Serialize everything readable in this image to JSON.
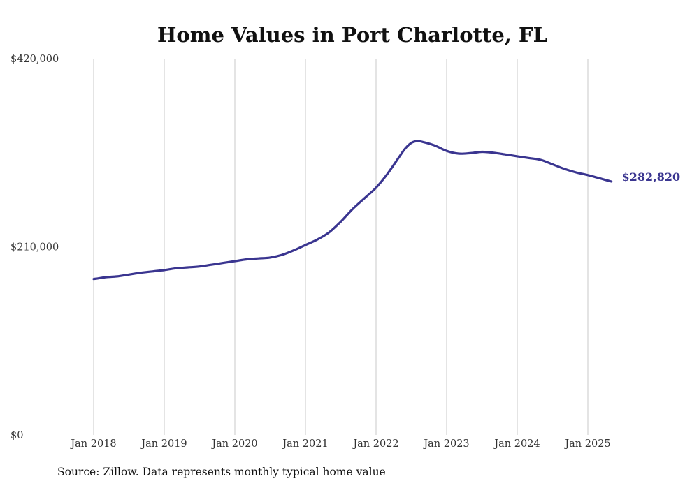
{
  "chart_data": {
    "type": "line",
    "title": "Home Values in Port Charlotte, FL",
    "xlabel": "",
    "ylabel": "",
    "ylim": [
      0,
      420000
    ],
    "xlim": [
      "2018-01",
      "2025-05"
    ],
    "grid": "vertical",
    "y_ticks": [
      {
        "value": 0,
        "label": "$0"
      },
      {
        "value": 210000,
        "label": "$210,000"
      },
      {
        "value": 420000,
        "label": "$420,000"
      }
    ],
    "x_ticks": [
      {
        "value": "2018-01",
        "label": "Jan 2018"
      },
      {
        "value": "2019-01",
        "label": "Jan 2019"
      },
      {
        "value": "2020-01",
        "label": "Jan 2020"
      },
      {
        "value": "2021-01",
        "label": "Jan 2021"
      },
      {
        "value": "2022-01",
        "label": "Jan 2022"
      },
      {
        "value": "2023-01",
        "label": "Jan 2023"
      },
      {
        "value": "2024-01",
        "label": "Jan 2024"
      },
      {
        "value": "2025-01",
        "label": "Jan 2025"
      }
    ],
    "series": [
      {
        "color": "#3a3590",
        "points": [
          [
            "2018-01",
            174000
          ],
          [
            "2018-02",
            175000
          ],
          [
            "2018-03",
            176000
          ],
          [
            "2018-05",
            177000
          ],
          [
            "2018-07",
            179000
          ],
          [
            "2018-09",
            181000
          ],
          [
            "2018-11",
            182500
          ],
          [
            "2019-01",
            184000
          ],
          [
            "2019-03",
            186000
          ],
          [
            "2019-05",
            187000
          ],
          [
            "2019-07",
            188000
          ],
          [
            "2019-09",
            190000
          ],
          [
            "2019-11",
            192000
          ],
          [
            "2020-01",
            194000
          ],
          [
            "2020-03",
            196000
          ],
          [
            "2020-05",
            197000
          ],
          [
            "2020-07",
            198000
          ],
          [
            "2020-09",
            201000
          ],
          [
            "2020-11",
            206000
          ],
          [
            "2021-01",
            212000
          ],
          [
            "2021-03",
            218000
          ],
          [
            "2021-05",
            226000
          ],
          [
            "2021-07",
            238000
          ],
          [
            "2021-09",
            252000
          ],
          [
            "2021-11",
            264000
          ],
          [
            "2022-01",
            276000
          ],
          [
            "2022-03",
            292000
          ],
          [
            "2022-05",
            311000
          ],
          [
            "2022-06",
            320000
          ],
          [
            "2022-07",
            326000
          ],
          [
            "2022-08",
            328000
          ],
          [
            "2022-09",
            327000
          ],
          [
            "2022-11",
            323000
          ],
          [
            "2023-01",
            317000
          ],
          [
            "2023-03",
            314000
          ],
          [
            "2023-05",
            314500
          ],
          [
            "2023-07",
            316000
          ],
          [
            "2023-09",
            315000
          ],
          [
            "2023-11",
            313000
          ],
          [
            "2024-01",
            311000
          ],
          [
            "2024-03",
            309000
          ],
          [
            "2024-05",
            307000
          ],
          [
            "2024-07",
            302000
          ],
          [
            "2024-09",
            297000
          ],
          [
            "2024-11",
            293000
          ],
          [
            "2025-01",
            290000
          ],
          [
            "2025-03",
            286500
          ],
          [
            "2025-05",
            282820
          ]
        ]
      }
    ],
    "end_label": "$282,820"
  },
  "source_note": "Source: Zillow. Data represents monthly typical home value"
}
